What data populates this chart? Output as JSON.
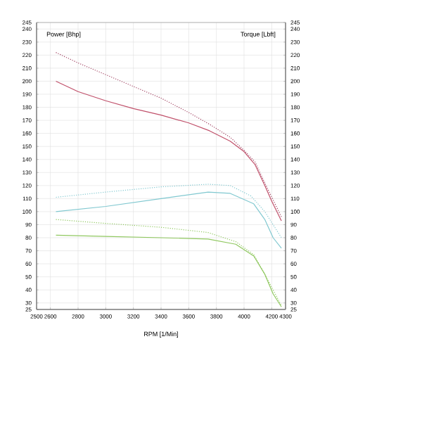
{
  "chart_data": {
    "type": "line",
    "xlabel": "RPM [1/Min]",
    "ylabel": "Power [Bhp]",
    "y2label": "Torque [Lbft]",
    "xlim": [
      2500,
      4300
    ],
    "xticks": [
      2500,
      2600,
      2800,
      3000,
      3200,
      3400,
      3600,
      3800,
      4000,
      4200,
      4300
    ],
    "ylim": [
      25,
      245
    ],
    "yticks": [
      25,
      30,
      40,
      50,
      60,
      70,
      80,
      90,
      100,
      110,
      120,
      130,
      140,
      150,
      160,
      170,
      180,
      190,
      200,
      210,
      220,
      230,
      240,
      245
    ],
    "y2lim": [
      25,
      245
    ],
    "y2ticks": [
      25,
      30,
      40,
      50,
      60,
      70,
      80,
      90,
      100,
      110,
      120,
      130,
      140,
      150,
      160,
      170,
      180,
      190,
      200,
      210,
      220,
      230,
      240,
      245
    ],
    "grid": true,
    "series": [
      {
        "color": "#c0506a",
        "line_style": "solid",
        "x": [
          2640,
          2800,
          3000,
          3200,
          3400,
          3600,
          3750,
          3900,
          4000,
          4080,
          4150,
          4200,
          4270
        ],
        "values": [
          200,
          192,
          185,
          179,
          174,
          168,
          162,
          154,
          146,
          136,
          120,
          108,
          93
        ]
      },
      {
        "color": "#a04060",
        "line_style": "dotted",
        "x": [
          2640,
          2800,
          3000,
          3200,
          3400,
          3600,
          3750,
          3900,
          4000,
          4080,
          4150,
          4270
        ],
        "values": [
          222,
          214,
          205,
          196,
          187,
          176,
          167,
          157,
          147,
          138,
          122,
          96
        ]
      },
      {
        "color": "#80c8d0",
        "line_style": "solid",
        "x": [
          2640,
          3000,
          3400,
          3740,
          3900,
          4070,
          4150,
          4210,
          4270
        ],
        "values": [
          100,
          104,
          110,
          115,
          114,
          106,
          94,
          80,
          72
        ]
      },
      {
        "color": "#80c8d0",
        "line_style": "dotted",
        "x": [
          2640,
          3000,
          3400,
          3740,
          3900,
          4050,
          4150,
          4270
        ],
        "values": [
          111,
          115,
          119,
          121,
          120,
          112,
          100,
          80
        ]
      },
      {
        "color": "#90c860",
        "line_style": "solid",
        "x": [
          2640,
          3000,
          3400,
          3740,
          3940,
          4070,
          4150,
          4210,
          4270
        ],
        "values": [
          82,
          81,
          80,
          79,
          75,
          66,
          52,
          37,
          27
        ]
      },
      {
        "color": "#90c860",
        "line_style": "dotted",
        "x": [
          2640,
          3000,
          3400,
          3740,
          3940,
          4070,
          4150,
          4270
        ],
        "values": [
          94,
          91,
          88,
          84,
          77,
          67,
          52,
          28
        ]
      }
    ]
  }
}
